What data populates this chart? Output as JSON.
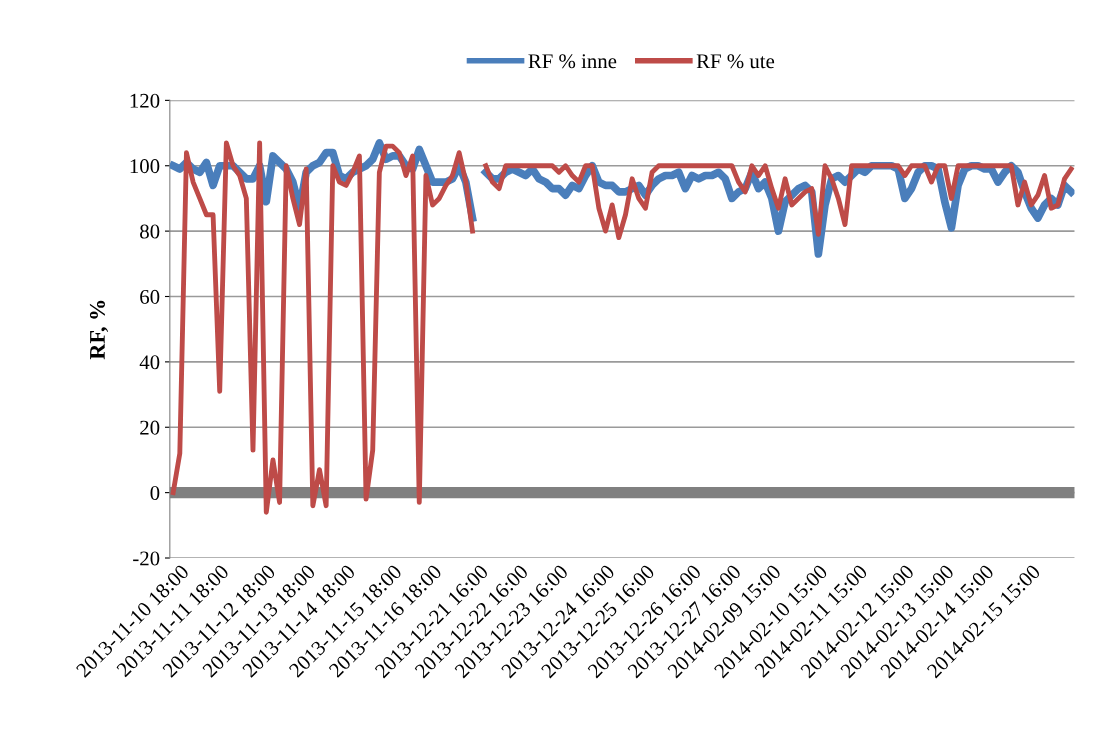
{
  "chart_data": {
    "type": "line",
    "ylabel": "RF, %",
    "categories": [
      null,
      "2013-11-10 18:00",
      null,
      null,
      null,
      null,
      null,
      "2013-11-11 18:00",
      null,
      null,
      null,
      null,
      null,
      null,
      "2013-11-12 18:00",
      null,
      null,
      null,
      null,
      null,
      "2013-11-13 18:00",
      null,
      null,
      null,
      null,
      null,
      "2013-11-14 18:00",
      null,
      null,
      null,
      null,
      null,
      null,
      "2013-11-15 18:00",
      null,
      null,
      null,
      null,
      null,
      "2013-11-16 18:00",
      null,
      null,
      null,
      null,
      null,
      null,
      "2013-12-21 16:00",
      null,
      null,
      null,
      null,
      null,
      "2013-12-22 16:00",
      null,
      null,
      null,
      null,
      null,
      "2013-12-23 16:00",
      null,
      null,
      null,
      null,
      null,
      null,
      "2013-12-24 16:00",
      null,
      null,
      null,
      null,
      null,
      "2013-12-25 16:00",
      null,
      null,
      null,
      null,
      null,
      null,
      "2013-12-26 16:00",
      null,
      null,
      null,
      null,
      null,
      "2013-12-27 16:00",
      null,
      null,
      null,
      null,
      null,
      "2014-02-09 15:00",
      null,
      null,
      null,
      null,
      null,
      null,
      "2014-02-10 15:00",
      null,
      null,
      null,
      null,
      null,
      "2014-02-11 15:00",
      null,
      null,
      null,
      null,
      null,
      null,
      "2014-02-12 15:00",
      null,
      null,
      null,
      null,
      null,
      "2014-02-13 15:00",
      null,
      null,
      null,
      null,
      null,
      "2014-02-14 15:00",
      null,
      null,
      null,
      null,
      null,
      null,
      "2014-02-15 15:00",
      null,
      null,
      null,
      null,
      null,
      null
    ],
    "series": [
      {
        "name": "RF % inne",
        "color": "#4a7ebb",
        "values": [
          100,
          99,
          101,
          99,
          98,
          101,
          94,
          100,
          100,
          100,
          98,
          96,
          96,
          100,
          89,
          103,
          101,
          99,
          95,
          87,
          98,
          100,
          101,
          104,
          104,
          97,
          96,
          98,
          99,
          100,
          102,
          107,
          102,
          103,
          103,
          100,
          99,
          105,
          100,
          95,
          95,
          95,
          96,
          100,
          95,
          84,
          null,
          98,
          96,
          96,
          98,
          99,
          98,
          97,
          99,
          96,
          95,
          93,
          93,
          91,
          94,
          93,
          97,
          100,
          95,
          94,
          94,
          92,
          92,
          93,
          94,
          91,
          94,
          96,
          97,
          97,
          98,
          93,
          97,
          96,
          97,
          97,
          98,
          96,
          90,
          92,
          93,
          98,
          93,
          95,
          90,
          80,
          89,
          91,
          93,
          94,
          92,
          73,
          88,
          96,
          97,
          95,
          97,
          99,
          98,
          100,
          100,
          100,
          100,
          99,
          90,
          93,
          98,
          100,
          100,
          99,
          89,
          81,
          94,
          99,
          100,
          100,
          99,
          99,
          95,
          98,
          100,
          98,
          92,
          87,
          84,
          88,
          90,
          88,
          94,
          92
        ]
      },
      {
        "name": "RF % ute",
        "color": "#be4b48",
        "values": [
          0,
          12,
          104,
          95,
          90,
          85,
          85,
          31,
          107,
          100,
          97,
          90,
          13,
          107,
          -6,
          10,
          -3,
          100,
          90,
          82,
          99,
          -4,
          7,
          -4,
          100,
          95,
          94,
          98,
          103,
          -2,
          13,
          98,
          106,
          106,
          104,
          97,
          103,
          -3,
          97,
          88,
          90,
          94,
          97,
          104,
          95,
          80,
          null,
          100,
          95,
          93,
          100,
          100,
          100,
          100,
          100,
          100,
          100,
          100,
          98,
          100,
          97,
          95,
          100,
          100,
          87,
          80,
          88,
          78,
          85,
          96,
          90,
          87,
          98,
          100,
          100,
          100,
          100,
          100,
          100,
          100,
          100,
          100,
          100,
          100,
          100,
          95,
          92,
          100,
          97,
          100,
          93,
          87,
          96,
          88,
          90,
          92,
          93,
          79,
          100,
          96,
          90,
          82,
          100,
          100,
          100,
          100,
          100,
          100,
          100,
          100,
          97,
          100,
          100,
          100,
          95,
          100,
          100,
          90,
          100,
          100,
          100,
          100,
          100,
          100,
          100,
          100,
          100,
          88,
          95,
          88,
          91,
          97,
          87,
          88,
          96,
          99
        ]
      }
    ],
    "ylim": [
      -20,
      120
    ],
    "yticks": [
      -20,
      0,
      20,
      40,
      60,
      80,
      100,
      120
    ],
    "ref_lines": [
      {
        "axis": "y",
        "value": 0,
        "color": "#808080"
      }
    ],
    "grid": "y",
    "legend": "top",
    "marker": "none",
    "line_style": "solid"
  }
}
